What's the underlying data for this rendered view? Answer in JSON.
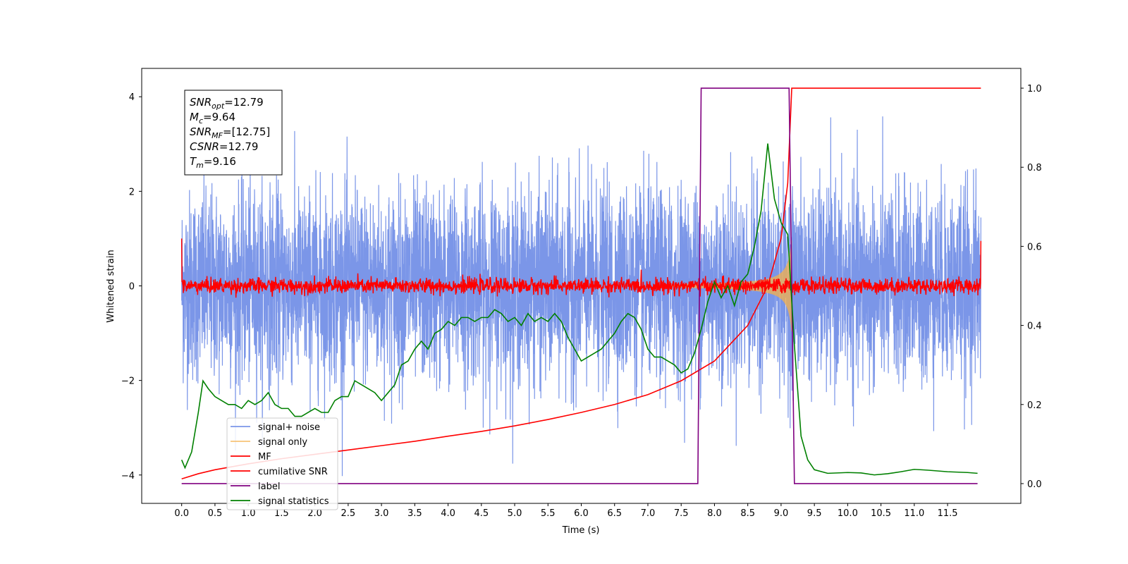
{
  "chart_data": {
    "type": "line",
    "xlabel": "Time (s)",
    "ylabel": "Whitened strain",
    "xlim": [
      -0.6,
      12.6
    ],
    "ylim": [
      -4.6,
      4.6
    ],
    "ylim_right": [
      -0.05,
      1.05
    ],
    "x_ticks": [
      "0.0",
      "0.5",
      "1.0",
      "1.5",
      "2.0",
      "2.5",
      "3.0",
      "3.5",
      "4.0",
      "4.5",
      "5.0",
      "5.5",
      "6.0",
      "6.5",
      "7.0",
      "7.5",
      "8.0",
      "8.5",
      "9.0",
      "9.5",
      "10.0",
      "10.5",
      "11.0",
      "11.5"
    ],
    "y_ticks": [
      "−4",
      "−2",
      "0",
      "2",
      "4"
    ],
    "y_right_ticks": [
      "0.0",
      "0.2",
      "0.4",
      "0.6",
      "0.8",
      "1.0"
    ],
    "legend_position": "lower-left",
    "grid": false,
    "annotation": [
      {
        "sym": "SNR",
        "sub": "opt",
        "val": "=12.79"
      },
      {
        "sym": "M",
        "sub": "c",
        "val": "=9.64"
      },
      {
        "sym": "SNR",
        "sub": "MF",
        "val": "=[12.75]"
      },
      {
        "sym": "CSNR",
        "sub": "",
        "val": "=12.79"
      },
      {
        "sym": "T",
        "sub": "m",
        "val": "=9.16"
      }
    ],
    "series": [
      {
        "name": "signal+ noise",
        "color": "#7b96e8",
        "axis": "left",
        "kind": "noise",
        "x_range": [
          0.0,
          12.0
        ],
        "amplitude": 1.0,
        "peak": 4.15
      },
      {
        "name": "signal only",
        "color": "#f5b04a",
        "axis": "left",
        "kind": "chirp",
        "x_range": [
          7.2,
          9.16
        ],
        "amplitude_end": 1.0
      },
      {
        "name": "MF",
        "color": "#ff0000",
        "axis": "left",
        "kind": "noise-small",
        "x_range": [
          0.0,
          12.0
        ],
        "amplitude": 0.08,
        "edges": [
          1.0,
          0.95
        ]
      },
      {
        "name": "cumilative SNR",
        "color": "#ff0000",
        "axis": "right",
        "x": [
          0.0,
          0.25,
          0.5,
          1.0,
          1.5,
          2.0,
          2.5,
          3.0,
          3.5,
          4.0,
          4.5,
          5.0,
          5.5,
          6.0,
          6.5,
          7.0,
          7.5,
          8.0,
          8.5,
          8.8,
          9.0,
          9.1,
          9.16,
          12.0
        ],
        "values": [
          0.012,
          0.025,
          0.035,
          0.05,
          0.063,
          0.074,
          0.085,
          0.096,
          0.107,
          0.12,
          0.132,
          0.146,
          0.162,
          0.18,
          0.2,
          0.225,
          0.26,
          0.31,
          0.4,
          0.5,
          0.62,
          0.76,
          1.0,
          1.0
        ]
      },
      {
        "name": "label",
        "color": "#800080",
        "axis": "right",
        "x": [
          0.0,
          7.75,
          7.8,
          9.12,
          9.2,
          11.95
        ],
        "values": [
          0.0,
          0.0,
          1.0,
          1.0,
          0.0,
          0.0
        ]
      },
      {
        "name": "signal statistics",
        "color": "#008000",
        "axis": "right",
        "x": [
          0.0,
          0.05,
          0.15,
          0.25,
          0.32,
          0.4,
          0.5,
          0.6,
          0.7,
          0.8,
          0.9,
          1.0,
          1.1,
          1.2,
          1.3,
          1.4,
          1.5,
          1.6,
          1.7,
          1.8,
          1.9,
          2.0,
          2.1,
          2.2,
          2.3,
          2.4,
          2.5,
          2.6,
          2.7,
          2.8,
          2.9,
          3.0,
          3.1,
          3.2,
          3.3,
          3.4,
          3.5,
          3.6,
          3.7,
          3.8,
          3.9,
          4.0,
          4.1,
          4.2,
          4.3,
          4.4,
          4.5,
          4.6,
          4.7,
          4.8,
          4.9,
          5.0,
          5.1,
          5.2,
          5.3,
          5.4,
          5.5,
          5.6,
          5.7,
          5.8,
          5.9,
          6.0,
          6.1,
          6.2,
          6.3,
          6.4,
          6.5,
          6.6,
          6.7,
          6.8,
          6.9,
          7.0,
          7.1,
          7.2,
          7.3,
          7.4,
          7.5,
          7.6,
          7.7,
          7.8,
          7.9,
          8.0,
          8.1,
          8.2,
          8.3,
          8.4,
          8.5,
          8.6,
          8.7,
          8.8,
          8.9,
          9.0,
          9.1,
          9.2,
          9.3,
          9.4,
          9.5,
          9.7,
          10.0,
          10.2,
          10.4,
          10.6,
          10.8,
          11.0,
          11.2,
          11.5,
          11.8,
          11.95
        ],
        "values": [
          0.06,
          0.04,
          0.08,
          0.18,
          0.26,
          0.24,
          0.22,
          0.21,
          0.2,
          0.2,
          0.19,
          0.21,
          0.2,
          0.21,
          0.23,
          0.2,
          0.19,
          0.19,
          0.17,
          0.17,
          0.18,
          0.19,
          0.18,
          0.18,
          0.21,
          0.22,
          0.22,
          0.26,
          0.25,
          0.24,
          0.23,
          0.21,
          0.23,
          0.25,
          0.3,
          0.31,
          0.34,
          0.36,
          0.34,
          0.38,
          0.39,
          0.41,
          0.4,
          0.42,
          0.42,
          0.41,
          0.42,
          0.42,
          0.44,
          0.43,
          0.41,
          0.42,
          0.4,
          0.43,
          0.41,
          0.42,
          0.41,
          0.43,
          0.41,
          0.37,
          0.34,
          0.31,
          0.32,
          0.33,
          0.34,
          0.36,
          0.38,
          0.41,
          0.43,
          0.42,
          0.39,
          0.34,
          0.32,
          0.32,
          0.31,
          0.3,
          0.28,
          0.29,
          0.33,
          0.39,
          0.46,
          0.51,
          0.47,
          0.5,
          0.45,
          0.51,
          0.53,
          0.6,
          0.69,
          0.86,
          0.72,
          0.66,
          0.63,
          0.35,
          0.12,
          0.06,
          0.035,
          0.026,
          0.028,
          0.027,
          0.022,
          0.025,
          0.03,
          0.036,
          0.034,
          0.03,
          0.028,
          0.026
        ]
      }
    ]
  }
}
